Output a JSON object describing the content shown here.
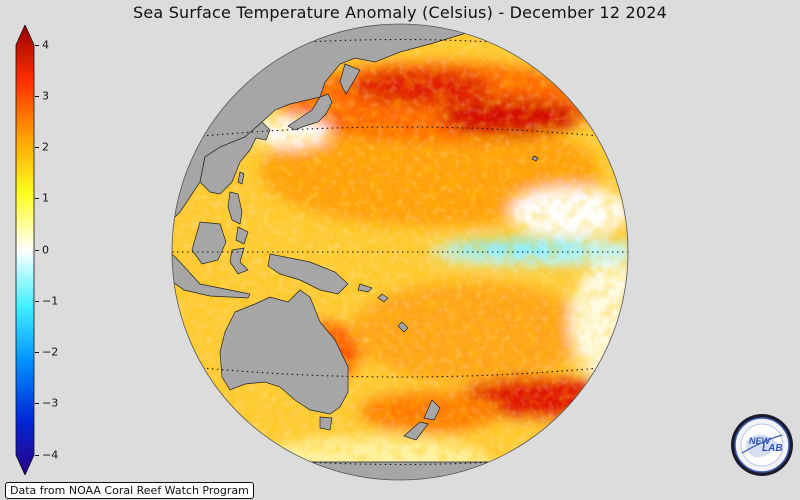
{
  "title": "Sea Surface Temperature Anomaly (Celsius) - December 12 2024",
  "colorbar": {
    "ticks": [
      "4",
      "3",
      "2",
      "1",
      "0",
      "−1",
      "−2",
      "−3",
      "−4"
    ],
    "min": -4,
    "max": 4,
    "colors": [
      "#2a0088",
      "#0028d8",
      "#0090ff",
      "#40f0ff",
      "#ffffff",
      "#ffff20",
      "#ffa000",
      "#ff3000",
      "#9a0000"
    ]
  },
  "credit": "Data from NOAA Coral Reef Watch Program",
  "logo": {
    "text_left": "NEW",
    "text_right": "LAB"
  },
  "map": {
    "projection": "orthographic",
    "land_color": "#a6a6a6",
    "background_color": "#dcdcdc"
  }
}
